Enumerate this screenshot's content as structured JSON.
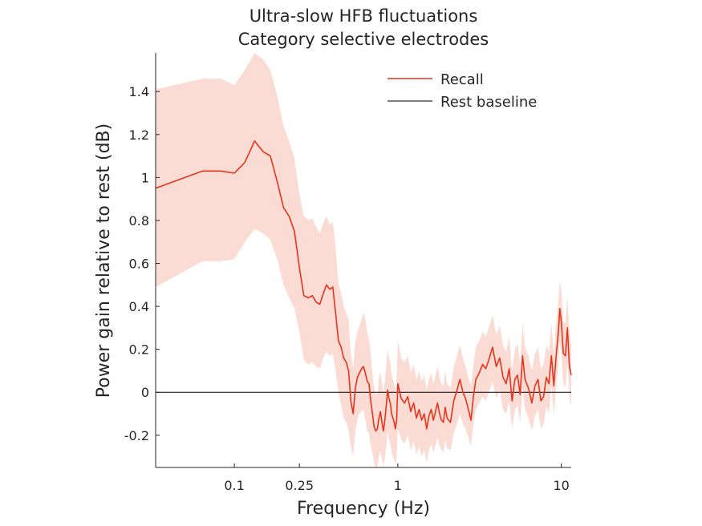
{
  "chart_data": {
    "type": "line",
    "title": [
      "Ultra-slow HFB fluctuations",
      "Category selective electrodes"
    ],
    "xlabel": "Frequency (Hz)",
    "ylabel": "Power gain relative to rest (dB)",
    "xscale": "log",
    "xlim": [
      0.033,
      11.5
    ],
    "ylim": [
      -0.35,
      1.58
    ],
    "xticks": [
      0.1,
      0.25,
      1,
      10
    ],
    "xticklabels": [
      "0.1",
      "0.25",
      "1",
      "10"
    ],
    "yticks": [
      -0.2,
      0,
      0.2,
      0.4,
      0.6,
      0.8,
      1,
      1.2,
      1.4
    ],
    "yticklabels": [
      "-0.2",
      "0",
      "0.2",
      "0.4",
      "0.6",
      "0.8",
      "1",
      "1.2",
      "1.4"
    ],
    "legend": {
      "position": "top-right",
      "entries": [
        "Recall",
        "Rest baseline"
      ]
    },
    "grid": false,
    "colors": {
      "recall": "#e8341c",
      "band": "#fbdcd5",
      "baseline": "#000000",
      "axis": "#262626"
    },
    "series": [
      {
        "name": "Recall",
        "x": [
          0.033,
          0.064,
          0.083,
          0.1,
          0.116,
          0.133,
          0.15,
          0.166,
          0.183,
          0.2,
          0.216,
          0.233,
          0.25,
          0.266,
          0.283,
          0.3,
          0.316,
          0.333,
          0.35,
          0.366,
          0.383,
          0.4,
          0.416,
          0.433,
          0.45,
          0.466,
          0.483,
          0.5,
          0.516,
          0.533,
          0.55,
          0.566,
          0.583,
          0.6,
          0.616,
          0.633,
          0.65,
          0.666,
          0.683,
          0.7,
          0.716,
          0.733,
          0.75,
          0.766,
          0.783,
          0.8,
          0.816,
          0.833,
          0.85,
          0.866,
          0.883,
          0.9,
          0.916,
          0.933,
          0.95,
          0.966,
          0.983,
          1.0,
          1.05,
          1.1,
          1.15,
          1.2,
          1.25,
          1.3,
          1.35,
          1.4,
          1.45,
          1.5,
          1.55,
          1.6,
          1.65,
          1.7,
          1.75,
          1.8,
          1.85,
          1.9,
          1.95,
          2.0,
          2.1,
          2.2,
          2.3,
          2.4,
          2.5,
          2.6,
          2.7,
          2.8,
          2.9,
          3.0,
          3.15,
          3.3,
          3.45,
          3.6,
          3.8,
          4.0,
          4.2,
          4.4,
          4.6,
          4.8,
          5.0,
          5.2,
          5.4,
          5.6,
          5.8,
          6.0,
          6.3,
          6.6,
          6.9,
          7.2,
          7.5,
          7.8,
          8.1,
          8.4,
          8.7,
          9.0,
          9.3,
          9.6,
          9.8,
          10.0,
          10.3,
          10.6,
          10.9,
          11.2,
          11.5
        ],
        "y": [
          0.95,
          1.03,
          1.03,
          1.02,
          1.07,
          1.17,
          1.12,
          1.1,
          0.98,
          0.86,
          0.82,
          0.75,
          0.58,
          0.45,
          0.44,
          0.45,
          0.42,
          0.41,
          0.46,
          0.5,
          0.48,
          0.49,
          0.37,
          0.24,
          0.21,
          0.16,
          0.14,
          0.1,
          -0.04,
          -0.1,
          0.02,
          0.07,
          0.09,
          0.11,
          0.12,
          0.09,
          0.05,
          0.04,
          -0.04,
          -0.1,
          -0.16,
          -0.18,
          -0.17,
          -0.12,
          -0.09,
          -0.14,
          -0.18,
          -0.13,
          -0.06,
          0.01,
          -0.03,
          -0.05,
          -0.1,
          -0.12,
          -0.14,
          -0.17,
          -0.13,
          0.04,
          -0.03,
          -0.05,
          -0.02,
          -0.09,
          -0.05,
          -0.12,
          -0.08,
          -0.13,
          -0.1,
          -0.17,
          -0.11,
          -0.08,
          -0.13,
          -0.09,
          -0.05,
          -0.1,
          -0.13,
          -0.14,
          -0.07,
          -0.12,
          -0.14,
          -0.04,
          0.01,
          0.06,
          0.0,
          -0.03,
          -0.08,
          -0.13,
          -0.02,
          0.06,
          0.09,
          0.13,
          0.11,
          0.15,
          0.21,
          0.12,
          0.16,
          0.07,
          0.04,
          0.11,
          -0.04,
          0.06,
          0.08,
          -0.01,
          0.17,
          0.06,
          0.02,
          -0.05,
          0.03,
          0.06,
          -0.04,
          -0.02,
          0.07,
          0.04,
          0.17,
          0.03,
          0.17,
          0.28,
          0.39,
          0.33,
          0.18,
          0.17,
          0.3,
          0.12,
          0.08
        ],
        "lower": [
          0.49,
          0.61,
          0.61,
          0.62,
          0.7,
          0.76,
          0.74,
          0.71,
          0.62,
          0.5,
          0.44,
          0.39,
          0.28,
          0.15,
          0.13,
          0.14,
          0.12,
          0.11,
          0.16,
          0.19,
          0.17,
          0.18,
          0.1,
          0.0,
          -0.06,
          -0.12,
          -0.14,
          -0.18,
          -0.25,
          -0.3,
          -0.18,
          -0.13,
          -0.1,
          -0.09,
          -0.08,
          -0.13,
          -0.18,
          -0.19,
          -0.25,
          -0.28,
          -0.33,
          -0.35,
          -0.34,
          -0.3,
          -0.27,
          -0.31,
          -0.35,
          -0.3,
          -0.25,
          -0.18,
          -0.22,
          -0.24,
          -0.28,
          -0.3,
          -0.31,
          -0.34,
          -0.3,
          -0.17,
          -0.22,
          -0.24,
          -0.2,
          -0.27,
          -0.23,
          -0.29,
          -0.25,
          -0.3,
          -0.27,
          -0.33,
          -0.27,
          -0.24,
          -0.28,
          -0.25,
          -0.21,
          -0.25,
          -0.27,
          -0.28,
          -0.22,
          -0.26,
          -0.27,
          -0.19,
          -0.15,
          -0.1,
          -0.15,
          -0.17,
          -0.21,
          -0.25,
          -0.15,
          -0.08,
          -0.05,
          -0.02,
          -0.04,
          0.0,
          0.05,
          -0.03,
          0.01,
          -0.08,
          -0.1,
          -0.04,
          -0.17,
          -0.08,
          -0.06,
          -0.14,
          0.02,
          -0.08,
          -0.12,
          -0.18,
          -0.11,
          -0.08,
          -0.17,
          -0.15,
          -0.07,
          -0.1,
          0.03,
          -0.11,
          0.03,
          0.13,
          0.24,
          0.18,
          0.04,
          0.02,
          0.15,
          -0.02,
          -0.06
        ],
        "upper": [
          1.41,
          1.46,
          1.46,
          1.43,
          1.5,
          1.58,
          1.55,
          1.5,
          1.38,
          1.24,
          1.17,
          1.09,
          0.92,
          0.82,
          0.8,
          0.81,
          0.77,
          0.74,
          0.79,
          0.82,
          0.78,
          0.79,
          0.68,
          0.51,
          0.46,
          0.4,
          0.37,
          0.34,
          0.18,
          0.11,
          0.24,
          0.28,
          0.31,
          0.34,
          0.37,
          0.34,
          0.28,
          0.25,
          0.18,
          0.09,
          0.02,
          -0.01,
          0.0,
          0.06,
          0.1,
          0.04,
          0.0,
          0.05,
          0.13,
          0.2,
          0.16,
          0.14,
          0.08,
          0.06,
          0.04,
          0.01,
          0.05,
          0.24,
          0.16,
          0.14,
          0.17,
          0.09,
          0.13,
          0.06,
          0.1,
          0.05,
          0.08,
          0.01,
          0.06,
          0.09,
          0.04,
          0.08,
          0.12,
          0.07,
          0.04,
          0.03,
          0.1,
          0.04,
          0.02,
          0.12,
          0.17,
          0.22,
          0.16,
          0.12,
          0.07,
          0.03,
          0.13,
          0.21,
          0.24,
          0.28,
          0.26,
          0.3,
          0.36,
          0.27,
          0.31,
          0.22,
          0.19,
          0.26,
          0.1,
          0.2,
          0.23,
          0.13,
          0.32,
          0.21,
          0.17,
          0.1,
          0.18,
          0.21,
          0.11,
          0.13,
          0.22,
          0.19,
          0.32,
          0.18,
          0.32,
          0.43,
          0.52,
          0.47,
          0.33,
          0.32,
          0.45,
          0.27,
          0.22
        ]
      },
      {
        "name": "Rest baseline",
        "x": [
          0.033,
          11.5
        ],
        "y": [
          0,
          0
        ]
      }
    ]
  }
}
